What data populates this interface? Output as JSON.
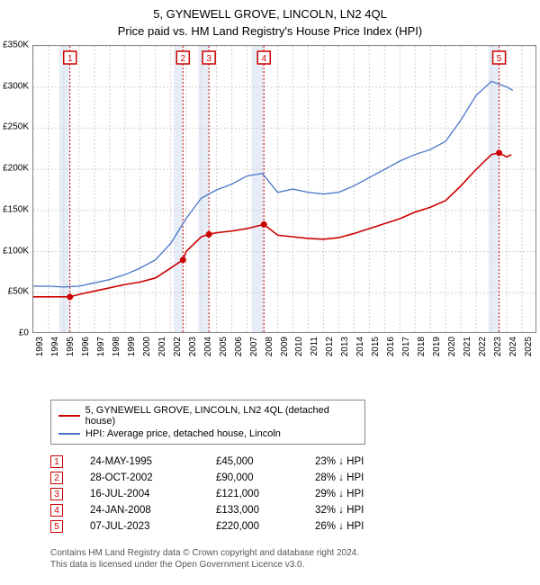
{
  "title_line1": "5, GYNEWELL GROVE, LINCOLN, LN2 4QL",
  "title_line2": "Price paid vs. HM Land Registry's House Price Index (HPI)",
  "chart": {
    "type": "line",
    "ylim": [
      0,
      350000
    ],
    "ytick_step": 50000,
    "ytick_labels": [
      "£0",
      "£50K",
      "£100K",
      "£150K",
      "£200K",
      "£250K",
      "£300K",
      "£350K"
    ],
    "xlim": [
      1993,
      2026
    ],
    "xtick_step": 1,
    "plot_border_color": "#888888",
    "grid_color": "#d0d0d0",
    "grid_dash": "2,2",
    "background_color": "#ffffff",
    "band_color": "#e6edf7",
    "bands": [
      [
        1994.7,
        1995.4
      ],
      [
        2002.2,
        2002.8
      ],
      [
        2003.8,
        2004.5
      ],
      [
        2007.3,
        2008.1
      ],
      [
        2022.8,
        2023.5
      ]
    ],
    "series": [
      {
        "name": "property",
        "label": "5, GYNEWELL GROVE, LINCOLN, LN2 4QL (detached house)",
        "color": "#cc0000",
        "line_width": 1.6,
        "points": [
          [
            1993,
            45000
          ],
          [
            1994,
            45000
          ],
          [
            1995.4,
            45000
          ],
          [
            1996,
            48000
          ],
          [
            1997,
            52000
          ],
          [
            1998,
            56000
          ],
          [
            1999,
            60000
          ],
          [
            2000,
            63000
          ],
          [
            2001,
            68000
          ],
          [
            2002,
            80000
          ],
          [
            2002.8,
            90000
          ],
          [
            2003,
            100000
          ],
          [
            2004,
            118000
          ],
          [
            2004.5,
            121000
          ],
          [
            2005,
            123000
          ],
          [
            2006,
            125000
          ],
          [
            2007,
            128000
          ],
          [
            2008.1,
            133000
          ],
          [
            2009,
            120000
          ],
          [
            2010,
            118000
          ],
          [
            2011,
            116000
          ],
          [
            2012,
            115000
          ],
          [
            2013,
            117000
          ],
          [
            2014,
            122000
          ],
          [
            2015,
            128000
          ],
          [
            2016,
            134000
          ],
          [
            2017,
            140000
          ],
          [
            2018,
            148000
          ],
          [
            2019,
            154000
          ],
          [
            2020,
            162000
          ],
          [
            2021,
            180000
          ],
          [
            2022,
            200000
          ],
          [
            2023,
            218000
          ],
          [
            2023.5,
            220000
          ],
          [
            2024,
            215000
          ],
          [
            2024.3,
            218000
          ]
        ],
        "sale_dots": [
          [
            1995.4,
            45000
          ],
          [
            2002.8,
            90000
          ],
          [
            2004.5,
            121000
          ],
          [
            2008.1,
            133000
          ],
          [
            2023.5,
            220000
          ]
        ]
      },
      {
        "name": "hpi",
        "label": "HPI: Average price, detached house, Lincoln",
        "color": "#4a74c9",
        "line_width": 1.3,
        "points": [
          [
            1993,
            58000
          ],
          [
            1994,
            58000
          ],
          [
            1995,
            57000
          ],
          [
            1996,
            58000
          ],
          [
            1997,
            62000
          ],
          [
            1998,
            66000
          ],
          [
            1999,
            72000
          ],
          [
            2000,
            80000
          ],
          [
            2001,
            90000
          ],
          [
            2002,
            110000
          ],
          [
            2003,
            140000
          ],
          [
            2004,
            165000
          ],
          [
            2005,
            175000
          ],
          [
            2006,
            182000
          ],
          [
            2007,
            192000
          ],
          [
            2008,
            195000
          ],
          [
            2009,
            172000
          ],
          [
            2010,
            176000
          ],
          [
            2011,
            172000
          ],
          [
            2012,
            170000
          ],
          [
            2013,
            172000
          ],
          [
            2014,
            180000
          ],
          [
            2015,
            190000
          ],
          [
            2016,
            200000
          ],
          [
            2017,
            210000
          ],
          [
            2018,
            218000
          ],
          [
            2019,
            224000
          ],
          [
            2020,
            234000
          ],
          [
            2021,
            260000
          ],
          [
            2022,
            290000
          ],
          [
            2023,
            307000
          ],
          [
            2024,
            300000
          ],
          [
            2024.4,
            296000
          ]
        ]
      }
    ],
    "marker_box_color": "#cc0000",
    "marker_vertical_line_color": "#cc0000",
    "marker_vertical_line_dash": "2,2",
    "sale_markers": [
      {
        "n": "1",
        "x": 1995.4
      },
      {
        "n": "2",
        "x": 2002.8
      },
      {
        "n": "3",
        "x": 2004.5
      },
      {
        "n": "4",
        "x": 2008.1
      },
      {
        "n": "5",
        "x": 2023.5
      }
    ]
  },
  "legend": {
    "property_color": "#cc0000",
    "hpi_color": "#4a74c9",
    "property_label": "5, GYNEWELL GROVE, LINCOLN, LN2 4QL (detached house)",
    "hpi_label": "HPI: Average price, detached house, Lincoln"
  },
  "sales": [
    {
      "n": "1",
      "date": "24-MAY-1995",
      "price": "£45,000",
      "diff": "23% ↓ HPI"
    },
    {
      "n": "2",
      "date": "28-OCT-2002",
      "price": "£90,000",
      "diff": "28% ↓ HPI"
    },
    {
      "n": "3",
      "date": "16-JUL-2004",
      "price": "£121,000",
      "diff": "29% ↓ HPI"
    },
    {
      "n": "4",
      "date": "24-JAN-2008",
      "price": "£133,000",
      "diff": "32% ↓ HPI"
    },
    {
      "n": "5",
      "date": "07-JUL-2023",
      "price": "£220,000",
      "diff": "26% ↓ HPI"
    }
  ],
  "footer": {
    "line1": "Contains HM Land Registry data © Crown copyright and database right 2024.",
    "line2": "This data is licensed under the Open Government Licence v3.0."
  }
}
